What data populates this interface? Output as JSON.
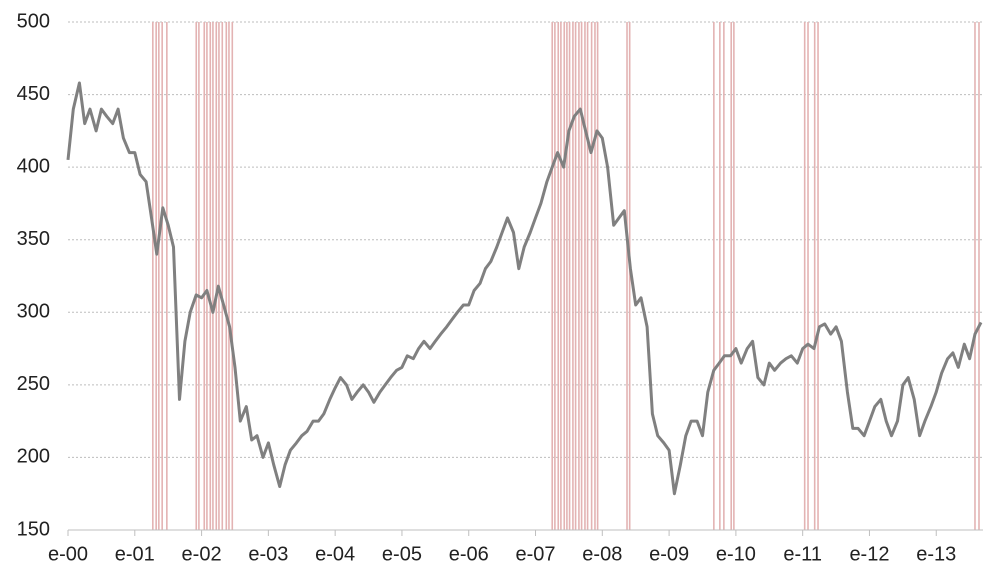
{
  "chart_data": {
    "type": "line",
    "color": "#808080",
    "band_color": "#e3b3b3",
    "grid": true,
    "xlim": [
      2000,
      2013.7
    ],
    "ylim": [
      150,
      500
    ],
    "yticks": [
      150,
      200,
      250,
      300,
      350,
      400,
      450,
      500
    ],
    "xticks": [
      {
        "value": 2000,
        "label": "e-00"
      },
      {
        "value": 2001,
        "label": "e-01"
      },
      {
        "value": 2002,
        "label": "e-02"
      },
      {
        "value": 2003,
        "label": "e-03"
      },
      {
        "value": 2004,
        "label": "e-04"
      },
      {
        "value": 2005,
        "label": "e-05"
      },
      {
        "value": 2006,
        "label": "e-06"
      },
      {
        "value": 2007,
        "label": "e-07"
      },
      {
        "value": 2008,
        "label": "e-08"
      },
      {
        "value": 2009,
        "label": "e-09"
      },
      {
        "value": 2010,
        "label": "e-10"
      },
      {
        "value": 2011,
        "label": "e-11"
      },
      {
        "value": 2012,
        "label": "e-12"
      },
      {
        "value": 2013,
        "label": "e-13"
      }
    ],
    "x": [
      2000,
      2000.08,
      2000.17,
      2000.25,
      2000.33,
      2000.42,
      2000.5,
      2000.58,
      2000.67,
      2000.75,
      2000.83,
      2000.92,
      2001,
      2001.08,
      2001.17,
      2001.25,
      2001.33,
      2001.42,
      2001.5,
      2001.58,
      2001.67,
      2001.75,
      2001.83,
      2001.92,
      2002,
      2002.08,
      2002.17,
      2002.25,
      2002.33,
      2002.42,
      2002.5,
      2002.58,
      2002.67,
      2002.75,
      2002.83,
      2002.92,
      2003,
      2003.08,
      2003.17,
      2003.25,
      2003.33,
      2003.42,
      2003.5,
      2003.58,
      2003.67,
      2003.75,
      2003.83,
      2003.92,
      2004,
      2004.08,
      2004.17,
      2004.25,
      2004.33,
      2004.42,
      2004.5,
      2004.58,
      2004.67,
      2004.75,
      2004.83,
      2004.92,
      2005,
      2005.08,
      2005.17,
      2005.25,
      2005.33,
      2005.42,
      2005.5,
      2005.58,
      2005.67,
      2005.75,
      2005.83,
      2005.92,
      2006,
      2006.08,
      2006.17,
      2006.25,
      2006.33,
      2006.42,
      2006.5,
      2006.58,
      2006.67,
      2006.75,
      2006.83,
      2006.92,
      2007,
      2007.08,
      2007.17,
      2007.25,
      2007.33,
      2007.42,
      2007.5,
      2007.58,
      2007.67,
      2007.75,
      2007.83,
      2007.92,
      2008,
      2008.08,
      2008.17,
      2008.25,
      2008.33,
      2008.42,
      2008.5,
      2008.58,
      2008.67,
      2008.75,
      2008.83,
      2008.92,
      2009,
      2009.08,
      2009.17,
      2009.25,
      2009.33,
      2009.42,
      2009.5,
      2009.58,
      2009.67,
      2009.75,
      2009.83,
      2009.92,
      2010,
      2010.08,
      2010.17,
      2010.25,
      2010.33,
      2010.42,
      2010.5,
      2010.58,
      2010.67,
      2010.75,
      2010.83,
      2010.92,
      2011,
      2011.08,
      2011.17,
      2011.25,
      2011.33,
      2011.42,
      2011.5,
      2011.58,
      2011.67,
      2011.75,
      2011.83,
      2011.92,
      2012,
      2012.08,
      2012.17,
      2012.25,
      2012.33,
      2012.42,
      2012.5,
      2012.58,
      2012.67,
      2012.75,
      2012.83,
      2012.92,
      2013,
      2013.08,
      2013.17,
      2013.25,
      2013.33,
      2013.42,
      2013.5,
      2013.58,
      2013.67
    ],
    "values": [
      405,
      440,
      458,
      430,
      440,
      425,
      440,
      435,
      430,
      440,
      420,
      410,
      410,
      395,
      390,
      365,
      340,
      372,
      360,
      345,
      240,
      280,
      300,
      312,
      310,
      315,
      300,
      318,
      305,
      290,
      262,
      225,
      235,
      212,
      215,
      200,
      210,
      195,
      180,
      195,
      205,
      210,
      215,
      218,
      225,
      225,
      230,
      240,
      248,
      255,
      250,
      240,
      245,
      250,
      245,
      238,
      245,
      250,
      255,
      260,
      262,
      270,
      268,
      275,
      280,
      275,
      280,
      285,
      290,
      295,
      300,
      305,
      305,
      315,
      320,
      330,
      335,
      345,
      355,
      365,
      355,
      330,
      345,
      355,
      365,
      375,
      390,
      400,
      410,
      400,
      425,
      435,
      440,
      425,
      410,
      425,
      420,
      400,
      360,
      365,
      370,
      330,
      305,
      310,
      290,
      230,
      215,
      210,
      205,
      175,
      195,
      215,
      225,
      225,
      215,
      245,
      260,
      265,
      270,
      270,
      275,
      265,
      275,
      280,
      255,
      250,
      265,
      260,
      265,
      268,
      270,
      265,
      275,
      278,
      275,
      290,
      292,
      285,
      290,
      280,
      245,
      220,
      220,
      215,
      225,
      235,
      240,
      225,
      215,
      225,
      250,
      255,
      240,
      215,
      225,
      235,
      245,
      258,
      268,
      272,
      262,
      278,
      268,
      285,
      293
    ],
    "bands": [
      2001.27,
      2001.32,
      2001.36,
      2001.41,
      2001.48,
      2001.92,
      2001.96,
      2002.04,
      2002.08,
      2002.13,
      2002.17,
      2002.22,
      2002.26,
      2002.31,
      2002.37,
      2002.41,
      2002.46,
      2007.25,
      2007.29,
      2007.34,
      2007.38,
      2007.43,
      2007.47,
      2007.51,
      2007.56,
      2007.6,
      2007.65,
      2007.69,
      2007.74,
      2007.78,
      2007.84,
      2007.89,
      2007.93,
      2008.37,
      2008.41,
      2009.67,
      2009.76,
      2009.82,
      2009.93,
      2009.97,
      2011.03,
      2011.08,
      2011.18,
      2011.23,
      2013.58,
      2013.64
    ]
  }
}
